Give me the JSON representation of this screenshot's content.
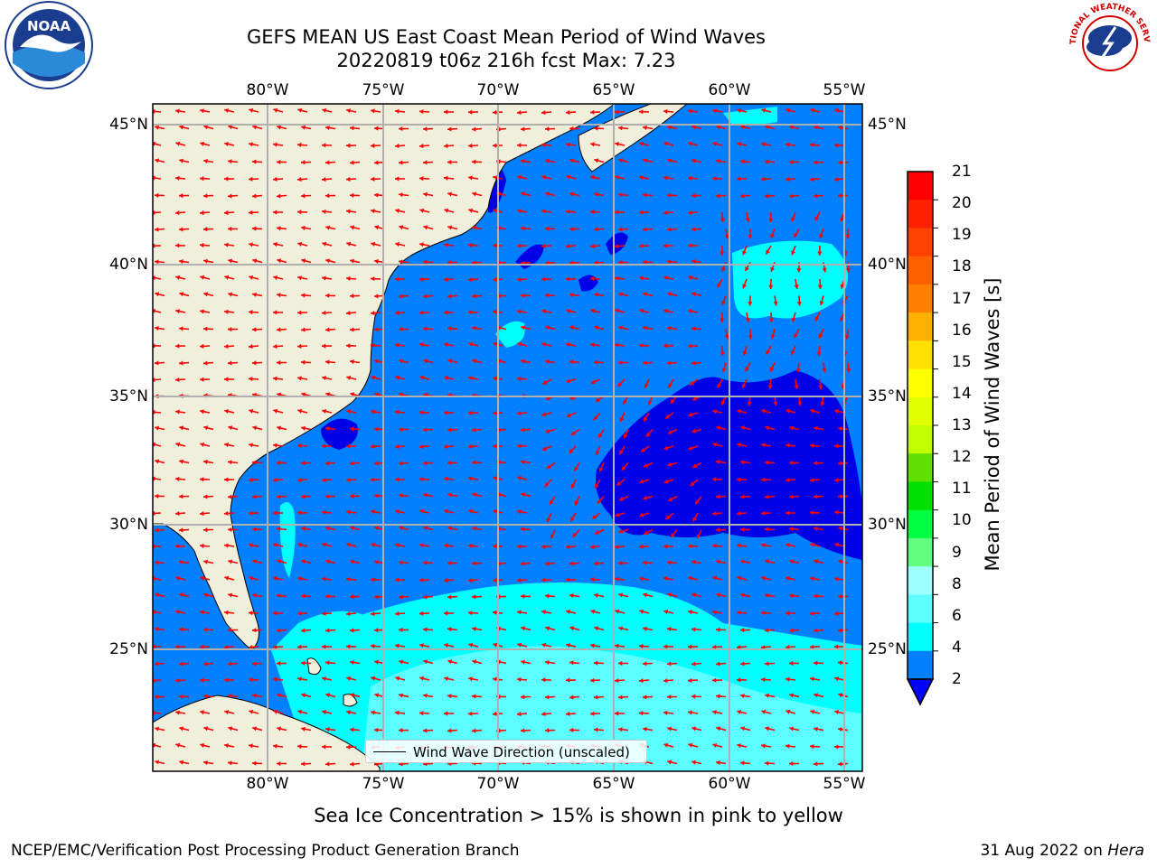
{
  "header": {
    "title_line1": "GEFS MEAN US East Coast Mean Period of Wind Waves",
    "title_line2": "20220819 t06z 216h fcst   Max: 7.23"
  },
  "logos": {
    "left": {
      "name": "noaa-logo",
      "text": "NOAA"
    },
    "right": {
      "name": "nws-logo",
      "text": "NATIONAL WEATHER SERVICE"
    }
  },
  "map": {
    "lon_labels": [
      "80°W",
      "75°W",
      "70°W",
      "65°W",
      "60°W",
      "55°W"
    ],
    "lat_labels": [
      "45°N",
      "40°N",
      "35°N",
      "30°N",
      "25°N"
    ],
    "colors": {
      "land": "#efefdc",
      "ocean_blue": "#0080ff",
      "deep_blue": "#0000e6",
      "cyan": "#00ffff",
      "light_cyan": "#66ffff",
      "arrow": "#ff0000",
      "grid": "#b0b0b0"
    },
    "legend_label": "Wind Wave Direction (unscaled)"
  },
  "colorbar": {
    "label": "Mean Period of Wind Waves [s]",
    "ticks": [
      "21",
      "20",
      "19",
      "18",
      "17",
      "16",
      "15",
      "14",
      "13",
      "12",
      "11",
      "10",
      "9",
      "8",
      "6",
      "4",
      "2"
    ],
    "colors": [
      "#ff0000",
      "#ff2000",
      "#ff4000",
      "#ff6000",
      "#ff8000",
      "#ffb000",
      "#ffe000",
      "#ffff00",
      "#e0ff00",
      "#c0ff00",
      "#60e000",
      "#00e000",
      "#00ff40",
      "#60ff80",
      "#a0ffff",
      "#60ffff",
      "#00ffff",
      "#0080ff"
    ],
    "extend_color": "#0000ff"
  },
  "captions": {
    "sea_ice": "Sea Ice Concentration > 15% is shown in pink to yellow",
    "footer_left": "NCEP/EMC/Verification Post Processing Product Generation Branch",
    "footer_date": "31 Aug 2022 on ",
    "footer_machine": "Hera"
  }
}
